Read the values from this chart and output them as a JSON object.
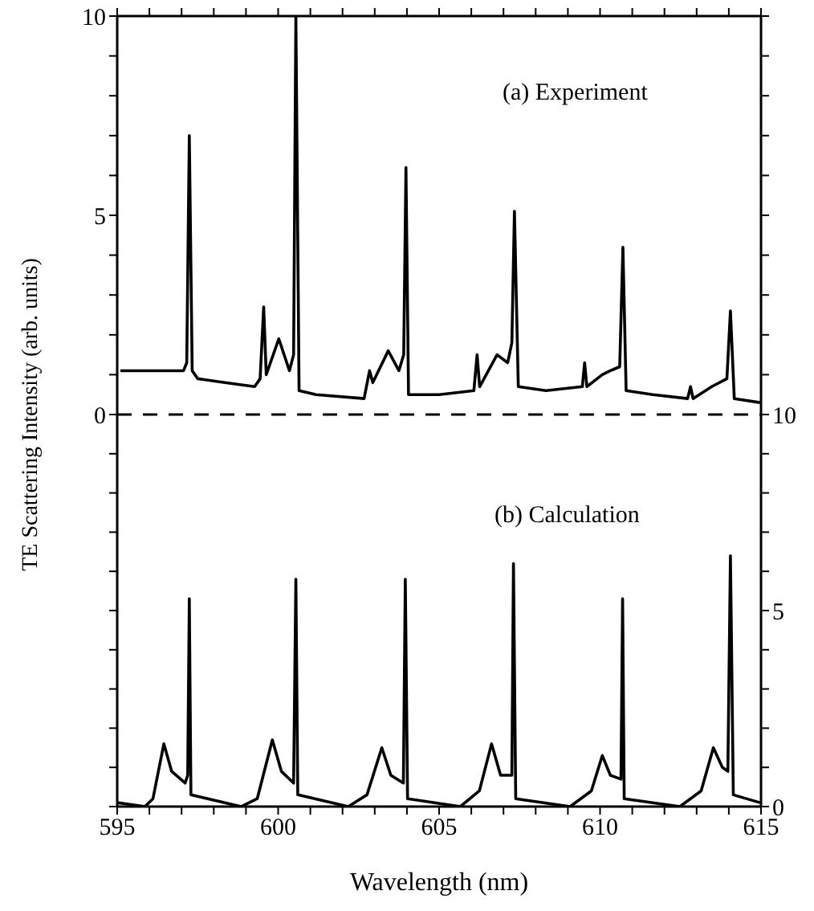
{
  "chart_data": [
    {
      "type": "line",
      "ylabel": "TE Scattering Intensity (arb. units)",
      "annotations": [
        "(a) Experiment"
      ],
      "xlim": [
        595,
        615
      ],
      "xticks": [
        {
          "value": 595,
          "label": null
        },
        {
          "value": 596,
          "label": null
        },
        {
          "value": 597,
          "label": null
        },
        {
          "value": 598,
          "label": null
        },
        {
          "value": 599,
          "label": null
        },
        {
          "value": 600,
          "label": null
        },
        {
          "value": 601,
          "label": null
        },
        {
          "value": 602,
          "label": null
        },
        {
          "value": 603,
          "label": null
        },
        {
          "value": 604,
          "label": null
        },
        {
          "value": 605,
          "label": null
        },
        {
          "value": 606,
          "label": null
        },
        {
          "value": 607,
          "label": null
        },
        {
          "value": 608,
          "label": null
        },
        {
          "value": 609,
          "label": null
        },
        {
          "value": 610,
          "label": null
        },
        {
          "value": 611,
          "label": null
        },
        {
          "value": 612,
          "label": null
        },
        {
          "value": 613,
          "label": null
        },
        {
          "value": 614,
          "label": null
        },
        {
          "value": 615,
          "label": null
        }
      ],
      "ylim": [
        0,
        10
      ],
      "yticks": [
        0,
        {
          "value": 1,
          "label": null
        },
        {
          "value": 2,
          "label": null
        },
        {
          "value": 3,
          "label": null
        },
        {
          "value": 4,
          "label": null
        },
        5,
        {
          "value": 6,
          "label": null
        },
        {
          "value": 7,
          "label": null
        },
        {
          "value": 8,
          "label": null
        },
        {
          "value": 9,
          "label": null
        },
        10
      ],
      "tick_labels": "y",
      "ref_lines": [
        {
          "axis": "y",
          "value": 0,
          "label": null,
          "color": "#000000",
          "line_style": "dashed"
        }
      ],
      "x": [
        595.1,
        596.5,
        597.06,
        597.16,
        597.24,
        597.33,
        597.5,
        598.35,
        599.27,
        599.44,
        599.55,
        599.63,
        600.02,
        600.35,
        600.48,
        600.55,
        600.65,
        601.18,
        602.67,
        602.84,
        602.94,
        603.42,
        603.75,
        603.9,
        603.97,
        604.05,
        605.0,
        606.08,
        606.18,
        606.26,
        606.8,
        607.13,
        607.26,
        607.34,
        607.46,
        608.32,
        609.45,
        609.52,
        609.59,
        610.07,
        610.32,
        610.61,
        610.71,
        610.81,
        611.64,
        612.72,
        612.81,
        612.89,
        613.47,
        613.94,
        614.05,
        614.17,
        614.97
      ],
      "series": [
        {
          "color": "#000000",
          "values": [
            1.1,
            1.1,
            1.1,
            1.3,
            7.0,
            1.1,
            0.9,
            0.8,
            0.7,
            0.9,
            2.7,
            1.0,
            1.9,
            1.1,
            1.5,
            10,
            0.6,
            0.5,
            0.4,
            1.1,
            0.8,
            1.6,
            1.1,
            1.5,
            6.2,
            0.5,
            0.5,
            0.6,
            1.5,
            0.7,
            1.5,
            1.3,
            1.8,
            5.1,
            0.7,
            0.6,
            0.7,
            1.3,
            0.7,
            1.0,
            1.1,
            1.2,
            4.2,
            0.6,
            0.5,
            0.4,
            0.7,
            0.4,
            0.7,
            0.9,
            2.6,
            0.4,
            0.3
          ]
        }
      ]
    },
    {
      "type": "line",
      "xlabel": "Wavelength (nm)",
      "annotations": [
        "(b) Calculation"
      ],
      "xlim": [
        595,
        615
      ],
      "xticks": [
        595,
        {
          "value": 596,
          "label": null
        },
        {
          "value": 597,
          "label": null
        },
        {
          "value": 598,
          "label": null
        },
        {
          "value": 599,
          "label": null
        },
        600,
        {
          "value": 601,
          "label": null
        },
        {
          "value": 602,
          "label": null
        },
        {
          "value": 603,
          "label": null
        },
        {
          "value": 604,
          "label": null
        },
        605,
        {
          "value": 606,
          "label": null
        },
        {
          "value": 607,
          "label": null
        },
        {
          "value": 608,
          "label": null
        },
        {
          "value": 609,
          "label": null
        },
        610,
        {
          "value": 611,
          "label": null
        },
        {
          "value": 612,
          "label": null
        },
        {
          "value": 613,
          "label": null
        },
        {
          "value": 614,
          "label": null
        },
        615
      ],
      "y2lim": [
        0,
        10
      ],
      "y2ticks": [
        0,
        {
          "value": 1,
          "label": null
        },
        {
          "value": 2,
          "label": null
        },
        {
          "value": 3,
          "label": null
        },
        {
          "value": 4,
          "label": null
        },
        5,
        {
          "value": 6,
          "label": null
        },
        {
          "value": 7,
          "label": null
        },
        {
          "value": 8,
          "label": null
        },
        {
          "value": 9,
          "label": null
        },
        10
      ],
      "x": [
        595.0,
        595.86,
        596.11,
        596.45,
        596.69,
        597.11,
        597.19,
        597.24,
        597.29,
        598.85,
        599.35,
        599.82,
        600.1,
        600.48,
        600.55,
        600.61,
        602.18,
        602.76,
        603.22,
        603.5,
        603.89,
        603.95,
        604.02,
        605.66,
        606.25,
        606.63,
        606.91,
        607.26,
        607.31,
        607.38,
        609.07,
        609.73,
        610.07,
        610.32,
        610.65,
        610.7,
        610.75,
        612.48,
        613.14,
        613.52,
        613.8,
        613.97,
        614.05,
        614.14,
        614.97
      ],
      "series": [
        {
          "color": "#000000",
          "axis": "y2",
          "values": [
            0.1,
            0.0,
            0.2,
            1.6,
            0.9,
            0.6,
            0.8,
            5.3,
            0.3,
            0.0,
            0.2,
            1.7,
            0.9,
            0.6,
            5.8,
            0.3,
            0.0,
            0.3,
            1.5,
            0.8,
            0.6,
            5.8,
            0.2,
            0.0,
            0.4,
            1.6,
            0.8,
            0.8,
            6.2,
            0.2,
            0.0,
            0.4,
            1.3,
            0.8,
            0.7,
            5.3,
            0.2,
            0.0,
            0.4,
            1.5,
            1.0,
            0.9,
            6.4,
            0.3,
            0.1
          ]
        }
      ]
    }
  ]
}
